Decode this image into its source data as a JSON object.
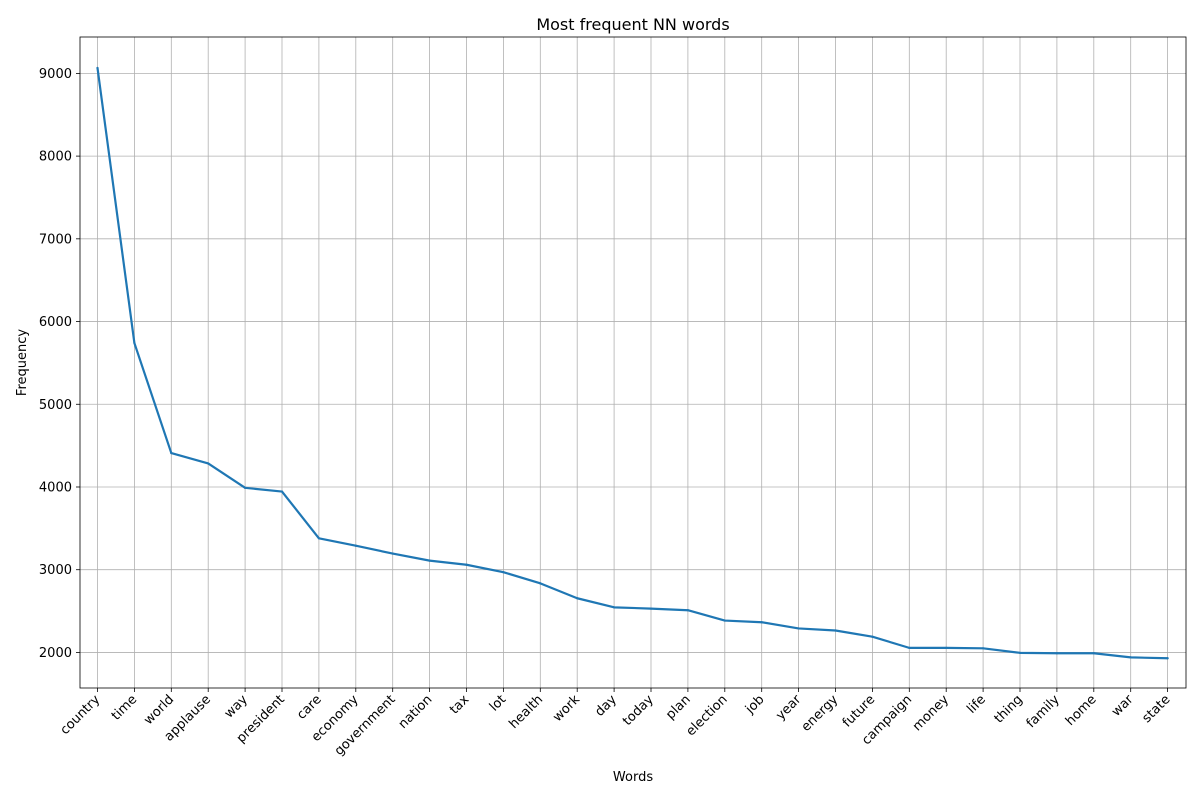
{
  "chart_data": {
    "type": "line",
    "title": "Most frequent NN words",
    "xlabel": "Words",
    "ylabel": "Frequency",
    "categories": [
      "country",
      "time",
      "world",
      "applause",
      "way",
      "president",
      "care",
      "economy",
      "government",
      "nation",
      "tax",
      "lot",
      "health",
      "work",
      "day",
      "today",
      "plan",
      "election",
      "job",
      "year",
      "energy",
      "future",
      "campaign",
      "money",
      "life",
      "thing",
      "family",
      "home",
      "war",
      "state"
    ],
    "series": [
      {
        "values": [
          9065,
          5740,
          4410,
          4285,
          3990,
          3945,
          3380,
          3290,
          3195,
          3110,
          3060,
          2970,
          2835,
          2655,
          2545,
          2530,
          2510,
          2385,
          2365,
          2290,
          2265,
          2190,
          2055,
          2055,
          2050,
          1995,
          1990,
          1990,
          1940,
          1930
        ],
        "color": "#1f77b4"
      }
    ],
    "ylim": [
      1570,
      9440
    ],
    "yticks": [
      2000,
      3000,
      4000,
      5000,
      6000,
      7000,
      8000,
      9000
    ],
    "grid": true,
    "legend": "none"
  }
}
